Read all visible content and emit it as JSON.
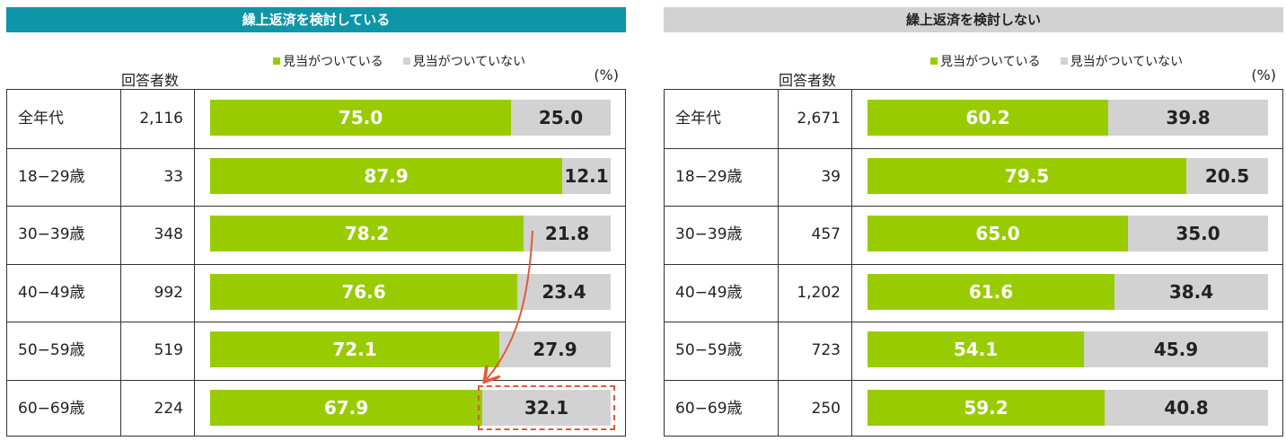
{
  "colors": {
    "yes": "#99cc00",
    "no": "#d2d2d2",
    "banner_left": "#0e95a8",
    "banner_right": "#d2d2d2",
    "annotation": "#e05a3a"
  },
  "common": {
    "legend_yes": "見当がついている",
    "legend_no": "見当がついていない",
    "unit": "(%)",
    "count_header": "回答者数"
  },
  "chart_data": [
    {
      "type": "bar",
      "orientation": "horizontal-stacked",
      "title": "繰上返済を検討している",
      "categories": [
        "全年代",
        "18−29歳",
        "30−39歳",
        "40−49歳",
        "50−59歳",
        "60−69歳"
      ],
      "counts": [
        "2,116",
        "33",
        "348",
        "992",
        "519",
        "224"
      ],
      "series": [
        {
          "name": "見当がついている",
          "values": [
            75.0,
            87.9,
            78.2,
            76.6,
            72.1,
            67.9
          ]
        },
        {
          "name": "見当がついていない",
          "values": [
            25.0,
            12.1,
            21.8,
            23.4,
            27.9,
            32.1
          ]
        }
      ],
      "xlim": [
        0,
        100
      ],
      "highlight": {
        "category": "60−69歳",
        "series": "見当がついていない"
      },
      "annotation": "arrow from 30−39歳 見当がついていない to 60−69歳 見当がついていない"
    },
    {
      "type": "bar",
      "orientation": "horizontal-stacked",
      "title": "繰上返済を検討しない",
      "categories": [
        "全年代",
        "18−29歳",
        "30−39歳",
        "40−49歳",
        "50−59歳",
        "60−69歳"
      ],
      "counts": [
        "2,671",
        "39",
        "457",
        "1,202",
        "723",
        "250"
      ],
      "series": [
        {
          "name": "見当がついている",
          "values": [
            60.2,
            79.5,
            65.0,
            61.6,
            54.1,
            59.2
          ]
        },
        {
          "name": "見当がついていない",
          "values": [
            39.8,
            20.5,
            35.0,
            38.4,
            45.9,
            40.8
          ]
        }
      ],
      "xlim": [
        0,
        100
      ]
    }
  ]
}
